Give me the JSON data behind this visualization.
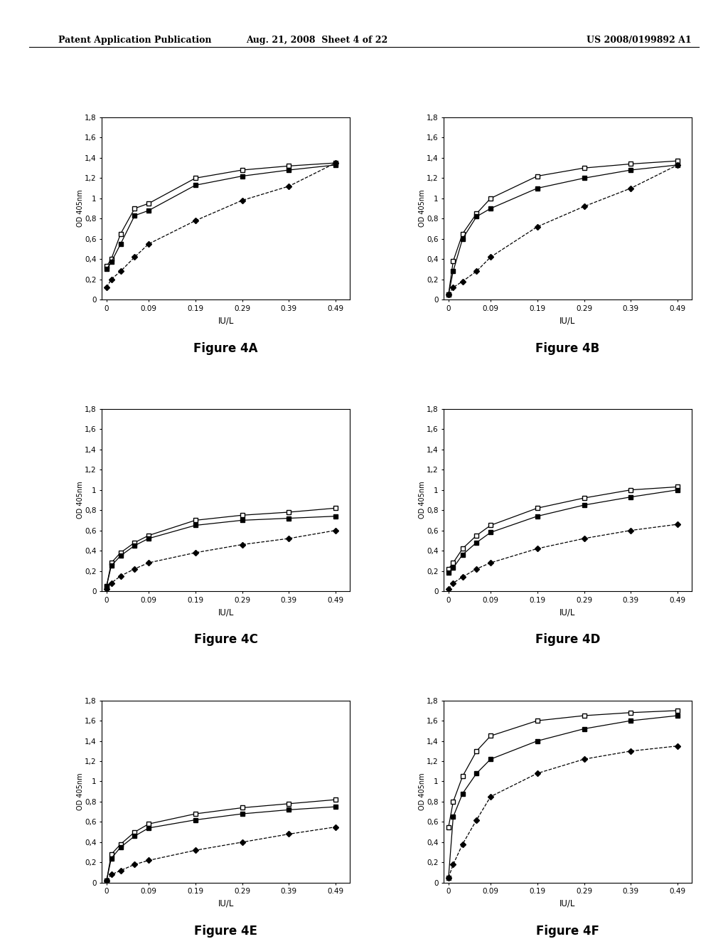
{
  "header_left": "Patent Application Publication",
  "header_center": "Aug. 21, 2008  Sheet 4 of 22",
  "header_right": "US 2008/0199892 A1",
  "x_ticks": [
    0,
    0.09,
    0.19,
    0.29,
    0.39,
    0.49
  ],
  "xlabel": "IU/L",
  "ylabel": "OD 405nm",
  "ylim": [
    0,
    1.8
  ],
  "yticks": [
    0,
    0.2,
    0.4,
    0.6,
    0.8,
    1.0,
    1.2,
    1.4,
    1.6,
    1.8
  ],
  "ytick_labels": [
    "0",
    "0,2",
    "0,4",
    "0,6",
    "0,8",
    "1",
    "1,2",
    "1,4",
    "1,6",
    "1,8"
  ],
  "figures": [
    {
      "title": "Figure 4A",
      "lines": [
        {
          "x": [
            0,
            0.01,
            0.03,
            0.06,
            0.09,
            0.19,
            0.29,
            0.39,
            0.49
          ],
          "y": [
            0.33,
            0.4,
            0.65,
            0.9,
            0.95,
            1.2,
            1.28,
            1.32,
            1.35
          ],
          "marker": "s",
          "fillstyle": "none",
          "linestyle": "-",
          "color": "black"
        },
        {
          "x": [
            0,
            0.01,
            0.03,
            0.06,
            0.09,
            0.19,
            0.29,
            0.39,
            0.49
          ],
          "y": [
            0.3,
            0.37,
            0.55,
            0.83,
            0.88,
            1.13,
            1.22,
            1.28,
            1.33
          ],
          "marker": "s",
          "fillstyle": "full",
          "linestyle": "-",
          "color": "black"
        },
        {
          "x": [
            0,
            0.01,
            0.03,
            0.06,
            0.09,
            0.19,
            0.29,
            0.39,
            0.49
          ],
          "y": [
            0.12,
            0.2,
            0.28,
            0.42,
            0.55,
            0.78,
            0.98,
            1.12,
            1.35
          ],
          "marker": "D",
          "fillstyle": "full",
          "linestyle": "--",
          "color": "black"
        }
      ]
    },
    {
      "title": "Figure 4B",
      "lines": [
        {
          "x": [
            0,
            0.01,
            0.03,
            0.06,
            0.09,
            0.19,
            0.29,
            0.39,
            0.49
          ],
          "y": [
            0.05,
            0.38,
            0.65,
            0.85,
            1.0,
            1.22,
            1.3,
            1.34,
            1.37
          ],
          "marker": "s",
          "fillstyle": "none",
          "linestyle": "-",
          "color": "black"
        },
        {
          "x": [
            0,
            0.01,
            0.03,
            0.06,
            0.09,
            0.19,
            0.29,
            0.39,
            0.49
          ],
          "y": [
            0.05,
            0.28,
            0.6,
            0.82,
            0.9,
            1.1,
            1.2,
            1.28,
            1.33
          ],
          "marker": "s",
          "fillstyle": "full",
          "linestyle": "-",
          "color": "black"
        },
        {
          "x": [
            0,
            0.01,
            0.03,
            0.06,
            0.09,
            0.19,
            0.29,
            0.39,
            0.49
          ],
          "y": [
            0.05,
            0.12,
            0.18,
            0.28,
            0.42,
            0.72,
            0.92,
            1.1,
            1.33
          ],
          "marker": "D",
          "fillstyle": "full",
          "linestyle": "--",
          "color": "black"
        }
      ]
    },
    {
      "title": "Figure 4C",
      "lines": [
        {
          "x": [
            0,
            0.01,
            0.03,
            0.06,
            0.09,
            0.19,
            0.29,
            0.39,
            0.49
          ],
          "y": [
            0.05,
            0.28,
            0.38,
            0.48,
            0.55,
            0.7,
            0.75,
            0.78,
            0.82
          ],
          "marker": "s",
          "fillstyle": "none",
          "linestyle": "-",
          "color": "black"
        },
        {
          "x": [
            0,
            0.01,
            0.03,
            0.06,
            0.09,
            0.19,
            0.29,
            0.39,
            0.49
          ],
          "y": [
            0.05,
            0.25,
            0.35,
            0.45,
            0.52,
            0.65,
            0.7,
            0.72,
            0.74
          ],
          "marker": "s",
          "fillstyle": "full",
          "linestyle": "-",
          "color": "black"
        },
        {
          "x": [
            0,
            0.01,
            0.03,
            0.06,
            0.09,
            0.19,
            0.29,
            0.39,
            0.49
          ],
          "y": [
            0.02,
            0.08,
            0.15,
            0.22,
            0.28,
            0.38,
            0.46,
            0.52,
            0.6
          ],
          "marker": "D",
          "fillstyle": "full",
          "linestyle": "--",
          "color": "black"
        }
      ]
    },
    {
      "title": "Figure 4D",
      "lines": [
        {
          "x": [
            0,
            0.01,
            0.03,
            0.06,
            0.09,
            0.19,
            0.29,
            0.39,
            0.49
          ],
          "y": [
            0.22,
            0.28,
            0.42,
            0.55,
            0.65,
            0.82,
            0.92,
            1.0,
            1.03
          ],
          "marker": "s",
          "fillstyle": "none",
          "linestyle": "-",
          "color": "black"
        },
        {
          "x": [
            0,
            0.01,
            0.03,
            0.06,
            0.09,
            0.19,
            0.29,
            0.39,
            0.49
          ],
          "y": [
            0.18,
            0.23,
            0.36,
            0.48,
            0.58,
            0.74,
            0.85,
            0.93,
            1.0
          ],
          "marker": "s",
          "fillstyle": "full",
          "linestyle": "-",
          "color": "black"
        },
        {
          "x": [
            0,
            0.01,
            0.03,
            0.06,
            0.09,
            0.19,
            0.29,
            0.39,
            0.49
          ],
          "y": [
            0.02,
            0.08,
            0.14,
            0.22,
            0.28,
            0.42,
            0.52,
            0.6,
            0.66
          ],
          "marker": "D",
          "fillstyle": "full",
          "linestyle": "--",
          "color": "black"
        }
      ]
    },
    {
      "title": "Figure 4E",
      "lines": [
        {
          "x": [
            0,
            0.01,
            0.03,
            0.06,
            0.09,
            0.19,
            0.29,
            0.39,
            0.49
          ],
          "y": [
            0.02,
            0.28,
            0.38,
            0.5,
            0.58,
            0.68,
            0.74,
            0.78,
            0.82
          ],
          "marker": "s",
          "fillstyle": "none",
          "linestyle": "-",
          "color": "black"
        },
        {
          "x": [
            0,
            0.01,
            0.03,
            0.06,
            0.09,
            0.19,
            0.29,
            0.39,
            0.49
          ],
          "y": [
            0.02,
            0.24,
            0.35,
            0.46,
            0.54,
            0.62,
            0.68,
            0.72,
            0.75
          ],
          "marker": "s",
          "fillstyle": "full",
          "linestyle": "-",
          "color": "black"
        },
        {
          "x": [
            0,
            0.01,
            0.03,
            0.06,
            0.09,
            0.19,
            0.29,
            0.39,
            0.49
          ],
          "y": [
            0.02,
            0.08,
            0.12,
            0.18,
            0.22,
            0.32,
            0.4,
            0.48,
            0.55
          ],
          "marker": "D",
          "fillstyle": "full",
          "linestyle": "--",
          "color": "black"
        }
      ]
    },
    {
      "title": "Figure 4F",
      "lines": [
        {
          "x": [
            0,
            0.01,
            0.03,
            0.06,
            0.09,
            0.19,
            0.29,
            0.39,
            0.49
          ],
          "y": [
            0.55,
            0.8,
            1.05,
            1.3,
            1.45,
            1.6,
            1.65,
            1.68,
            1.7
          ],
          "marker": "s",
          "fillstyle": "none",
          "linestyle": "-",
          "color": "black"
        },
        {
          "x": [
            0,
            0.01,
            0.03,
            0.06,
            0.09,
            0.19,
            0.29,
            0.39,
            0.49
          ],
          "y": [
            0.05,
            0.65,
            0.88,
            1.08,
            1.22,
            1.4,
            1.52,
            1.6,
            1.65
          ],
          "marker": "s",
          "fillstyle": "full",
          "linestyle": "-",
          "color": "black"
        },
        {
          "x": [
            0,
            0.01,
            0.03,
            0.06,
            0.09,
            0.19,
            0.29,
            0.39,
            0.49
          ],
          "y": [
            0.05,
            0.18,
            0.38,
            0.62,
            0.85,
            1.08,
            1.22,
            1.3,
            1.35
          ],
          "marker": "D",
          "fillstyle": "full",
          "linestyle": "--",
          "color": "black"
        }
      ]
    }
  ]
}
